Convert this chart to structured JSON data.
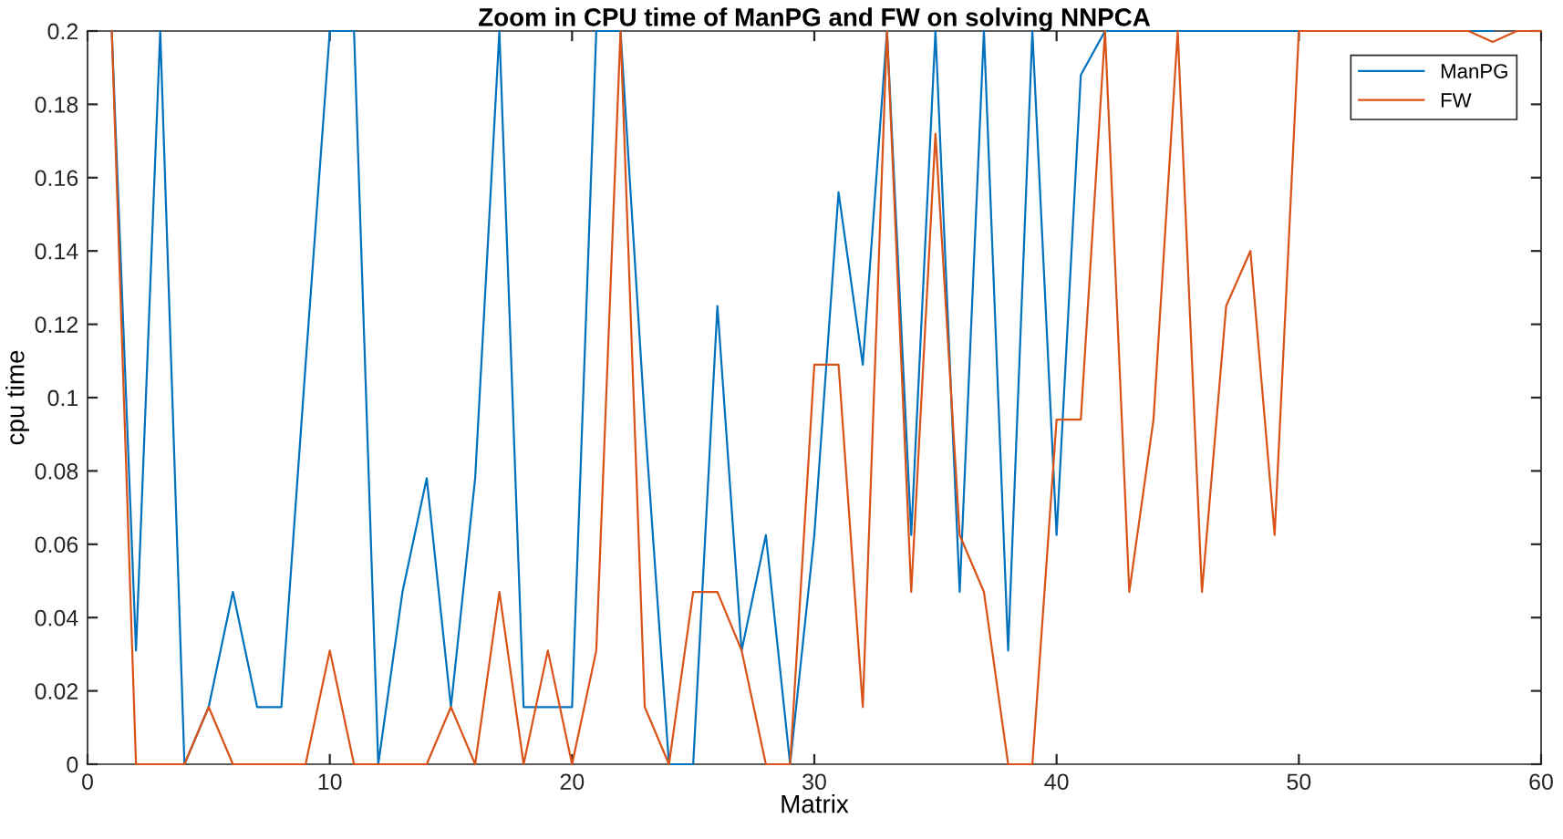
{
  "chart_data": {
    "type": "line",
    "title": "Zoom in CPU time of ManPG and FW on solving NNPCA",
    "xlabel": "Matrix",
    "ylabel": "cpu time",
    "x": [
      1,
      2,
      3,
      4,
      5,
      6,
      7,
      8,
      9,
      10,
      11,
      12,
      13,
      14,
      15,
      16,
      17,
      18,
      19,
      20,
      21,
      22,
      23,
      24,
      25,
      26,
      27,
      28,
      29,
      30,
      31,
      32,
      33,
      34,
      35,
      36,
      37,
      38,
      39,
      40,
      41,
      42,
      43,
      44,
      45,
      46,
      47,
      48,
      49,
      50,
      51,
      52,
      53,
      54,
      55,
      56,
      57,
      58,
      59,
      60
    ],
    "series": [
      {
        "name": "ManPG",
        "color": "#0072bd",
        "values": [
          0.2,
          0.031,
          0.2,
          0,
          0.0156,
          0.047,
          0.0156,
          0.0156,
          0.109,
          0.2,
          0.2,
          0,
          0.047,
          0.078,
          0.0156,
          0.078,
          0.2,
          0.0156,
          0.0156,
          0.0156,
          0.2,
          0.2,
          0.094,
          0,
          0,
          0.125,
          0.031,
          0.0625,
          0,
          0.0625,
          0.156,
          0.109,
          0.2,
          0.0625,
          0.2,
          0.047,
          0.2,
          0.031,
          0.2,
          0.0625,
          0.188,
          0.2,
          0.2,
          0.2,
          0.2,
          0.2,
          0.2,
          0.2,
          0.2,
          0.2,
          null,
          null,
          null,
          null,
          null,
          null,
          0.2,
          0.2,
          null,
          null
        ]
      },
      {
        "name": "FW",
        "color": "#d95319",
        "values": [
          0.2,
          0,
          0,
          0,
          0.0156,
          0,
          0,
          0,
          0,
          0.031,
          0,
          0,
          0,
          0,
          0.0156,
          0,
          0.047,
          0,
          0.031,
          0,
          0.031,
          0.2,
          0.0156,
          0,
          0.047,
          0.047,
          0.031,
          0,
          0,
          0.109,
          0.109,
          0.0156,
          0.2,
          0.047,
          0.172,
          0.0625,
          0.047,
          0,
          0,
          0.094,
          0.094,
          0.2,
          0.047,
          0.094,
          0.2,
          0.047,
          0.125,
          0.14,
          0.0625,
          0.2,
          0.2,
          0.2,
          0.2,
          0.2,
          0.2,
          0.2,
          0.2,
          0.197,
          0.2,
          0.2
        ]
      }
    ],
    "xlim": [
      0,
      60
    ],
    "xticks": [
      0,
      10,
      20,
      30,
      40,
      50,
      60
    ],
    "ylim": [
      0,
      0.2
    ],
    "yticks": [
      0,
      0.02,
      0.04,
      0.06,
      0.08,
      0.1,
      0.12,
      0.14,
      0.16,
      0.18,
      0.2
    ],
    "grid": false,
    "legend": "top right",
    "marker": "none",
    "line_style": "solid"
  }
}
